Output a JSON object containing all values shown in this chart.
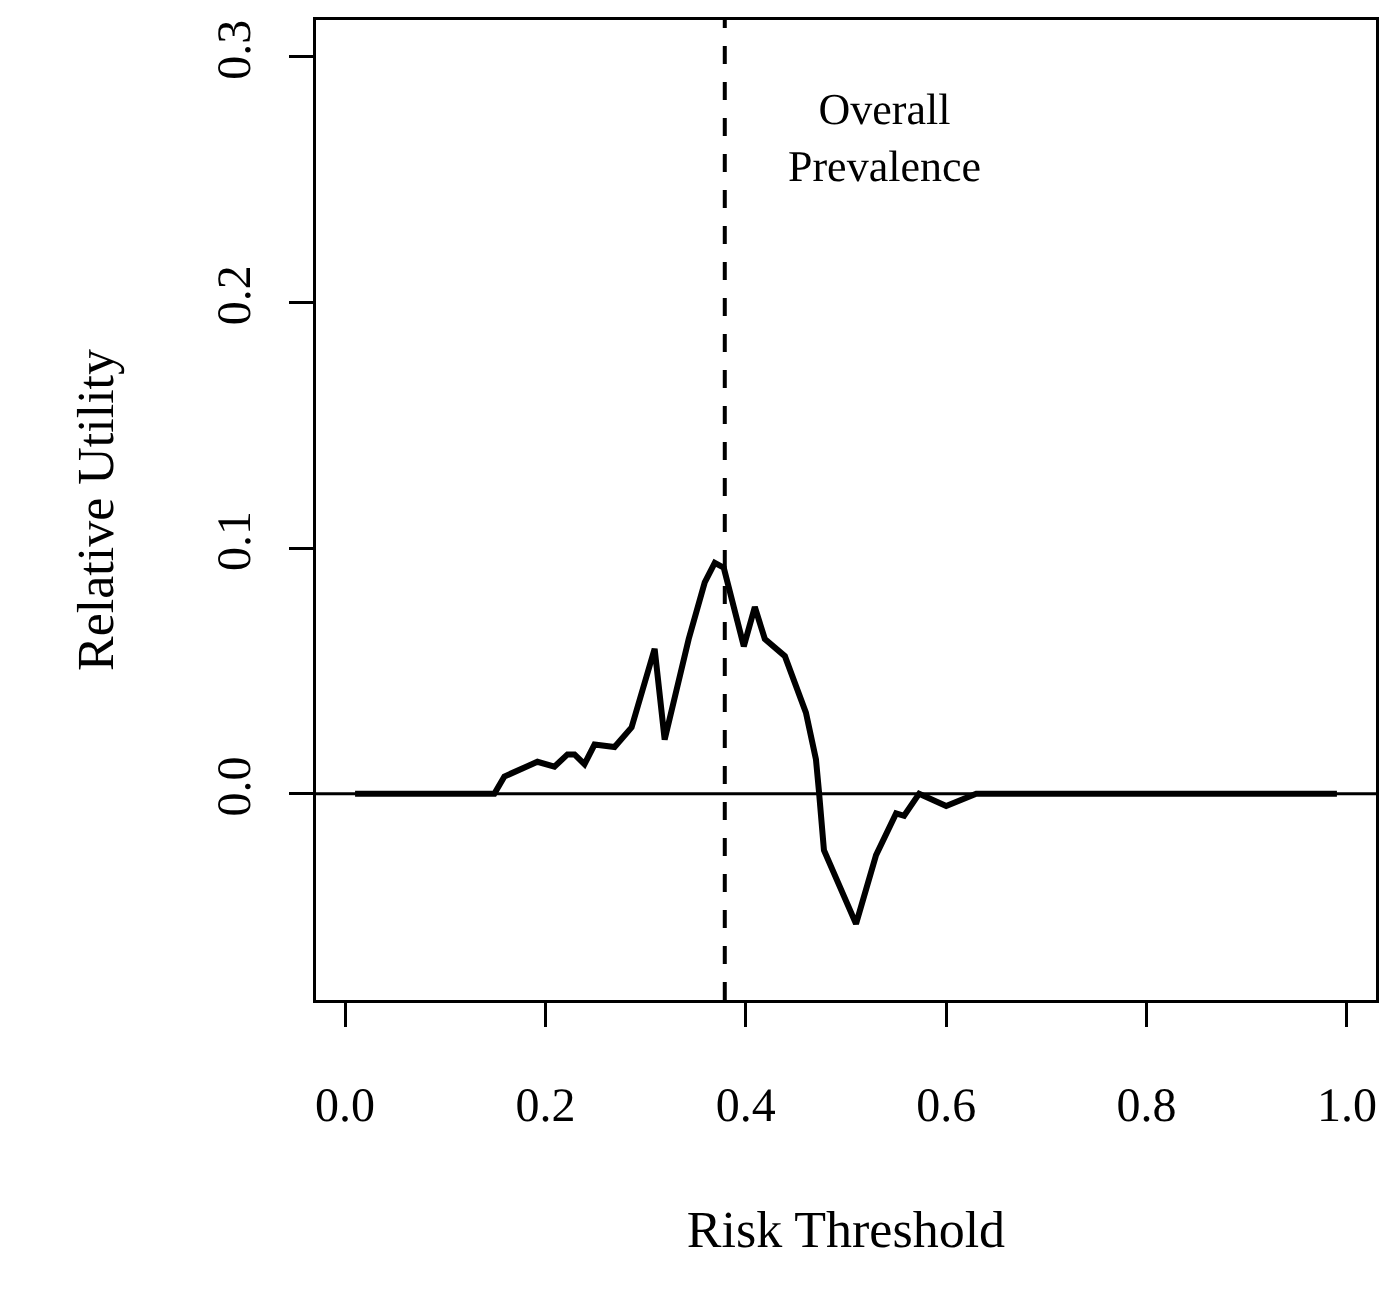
{
  "chart_data": {
    "type": "line",
    "xlabel": "Risk Threshold",
    "ylabel": "Relative Utility",
    "x": [
      0.01,
      0.149,
      0.159,
      0.192,
      0.209,
      0.222,
      0.229,
      0.239,
      0.249,
      0.269,
      0.286,
      0.309,
      0.319,
      0.343,
      0.359,
      0.369,
      0.378,
      0.398,
      0.409,
      0.419,
      0.439,
      0.46,
      0.47,
      0.473,
      0.478,
      0.51,
      0.53,
      0.55,
      0.558,
      0.573,
      0.6,
      0.63,
      0.99
    ],
    "series": [
      {
        "color": "#000000",
        "values": [
          0,
          0,
          0.007,
          0.013,
          0.011,
          0.016,
          0.016,
          0.012,
          0.02,
          0.019,
          0.027,
          0.059,
          0.022,
          0.063,
          0.086,
          0.094,
          0.092,
          0.06,
          0.076,
          0.063,
          0.056,
          0.033,
          0.014,
          0.001,
          -0.023,
          -0.053,
          -0.025,
          -0.008,
          -0.009,
          0,
          -0.005,
          0,
          0
        ]
      }
    ],
    "xlim": [
      -0.029,
      1.029
    ],
    "ylim": [
      -0.084,
      0.315
    ],
    "xticks": [
      {
        "value": 0,
        "label": "0.0"
      },
      0.2,
      0.4,
      0.6,
      0.8,
      {
        "value": 1,
        "label": "1.0"
      }
    ],
    "yticks": [
      {
        "value": 0,
        "label": "0.0"
      },
      0.1,
      0.2,
      0.3
    ],
    "ref_lines": [
      {
        "axis": "x",
        "value": 0.379,
        "label": "Overall\nPrevalence",
        "line_style": "dashed",
        "color": "#000000"
      },
      {
        "axis": "y",
        "value": 0,
        "color": "#000000",
        "line_style": "solid"
      }
    ],
    "marker": "none",
    "line_style": "solid"
  }
}
